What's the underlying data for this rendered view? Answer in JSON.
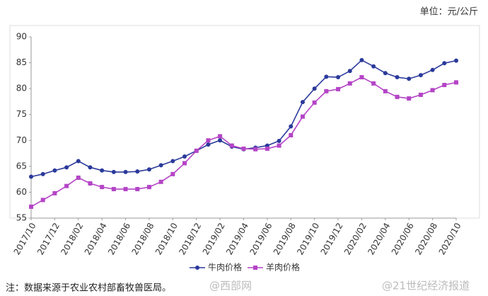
{
  "chart_data": {
    "type": "line",
    "y_unit": "单位：元/公斤",
    "note": "注：数据来源于农业农村部畜牧兽医局。",
    "watermarks": [
      "@西部网",
      "@21世纪经济报道"
    ],
    "categories": [
      "2017/10",
      null,
      "2017/12",
      null,
      "2018/02",
      null,
      "2018/04",
      null,
      "2018/06",
      null,
      "2018/08",
      null,
      "2018/10",
      null,
      "2018/12",
      null,
      "2019/02",
      null,
      "2019/04",
      null,
      "2019/06",
      null,
      "2019/08",
      null,
      "2019/10",
      null,
      "2019/12",
      null,
      "2020/02",
      null,
      "2020/04",
      null,
      "2020/06",
      null,
      "2020/08",
      null,
      "2020/10"
    ],
    "series": [
      {
        "name": "牛肉价格",
        "color": "#2b3a9b",
        "marker": "circle",
        "values": [
          63.0,
          63.5,
          64.2,
          64.8,
          66.0,
          64.8,
          64.2,
          63.9,
          63.9,
          64.0,
          64.4,
          65.2,
          66.0,
          66.9,
          68.0,
          69.2,
          70.0,
          68.8,
          68.3,
          68.6,
          69.0,
          69.9,
          72.7,
          77.4,
          80.0,
          82.3,
          82.2,
          83.4,
          85.5,
          84.3,
          83.0,
          82.2,
          81.9,
          82.6,
          83.6,
          84.9,
          85.4
        ]
      },
      {
        "name": "羊肉价格",
        "color": "#b444c6",
        "marker": "square",
        "values": [
          57.2,
          58.5,
          59.8,
          61.2,
          62.8,
          61.7,
          61.0,
          60.6,
          60.6,
          60.6,
          61.0,
          62.0,
          63.5,
          65.6,
          68.0,
          70.0,
          70.8,
          69.0,
          68.4,
          68.3,
          68.4,
          69.0,
          71.0,
          74.6,
          77.3,
          79.5,
          79.9,
          81.0,
          82.2,
          81.0,
          79.5,
          78.4,
          78.1,
          78.8,
          79.7,
          80.7,
          81.2
        ]
      }
    ],
    "ylim": [
      55,
      90
    ],
    "yticks": [
      55,
      60,
      65,
      70,
      75,
      80,
      85,
      90
    ],
    "legend": "bottom"
  }
}
